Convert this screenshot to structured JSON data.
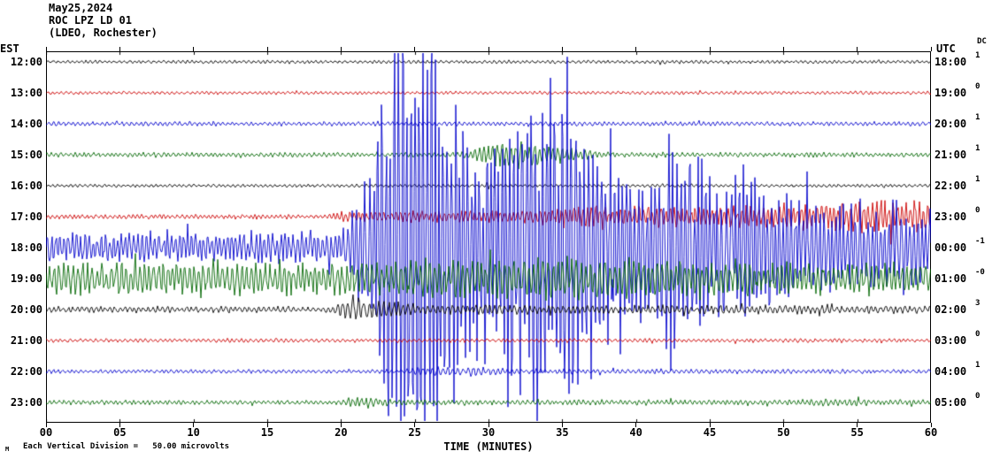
{
  "header": {
    "date": "May25,2024",
    "station": "ROC LPZ LD 01",
    "location": "(LDEO, Rochester)"
  },
  "axes": {
    "left_title": "EST",
    "right_title": "UTC",
    "dc_title": "DC",
    "x_title": "TIME (MINUTES)",
    "x_tick_labels": [
      "00",
      "05",
      "10",
      "15",
      "20",
      "25",
      "30",
      "35",
      "40",
      "45",
      "50",
      "55",
      "60"
    ]
  },
  "footer": {
    "scale_note": "Each Vertical Division =   50.00 microvolts",
    "corner_mark": "M"
  },
  "chart_data": {
    "type": "line",
    "subtype": "helicorder-seismogram",
    "title": "ROC LPZ LD 01 (LDEO, Rochester) May25,2024",
    "xlabel": "TIME (MINUTES)",
    "x_range_minutes": [
      0,
      60
    ],
    "minutes_per_row": 60,
    "vertical_division_microvolts": 50.0,
    "trace_colors_cycle": [
      "#000000",
      "#cc0000",
      "#0000cc",
      "#006600"
    ],
    "amplitude_units": "px_from_row_baseline",
    "rows": [
      {
        "est": "12:00",
        "utc": "18:00",
        "dc": "1",
        "color": "#000000",
        "seed": 101,
        "freq": 1.15,
        "env": [
          [
            0,
            1.3
          ],
          [
            60,
            1.3
          ]
        ]
      },
      {
        "est": "13:00",
        "utc": "19:00",
        "dc": "0",
        "color": "#cc0000",
        "seed": 202,
        "freq": 1.15,
        "env": [
          [
            0,
            1.3
          ],
          [
            60,
            1.3
          ]
        ]
      },
      {
        "est": "14:00",
        "utc": "20:00",
        "dc": "1",
        "color": "#0000cc",
        "seed": 303,
        "freq": 1.15,
        "env": [
          [
            0,
            1.7
          ],
          [
            60,
            1.7
          ]
        ]
      },
      {
        "est": "15:00",
        "utc": "21:00",
        "dc": "1",
        "color": "#006600",
        "seed": 404,
        "freq": 1.2,
        "env": [
          [
            0,
            1.8
          ],
          [
            27.5,
            1.8
          ],
          [
            28.5,
            3
          ],
          [
            29.5,
            7
          ],
          [
            30.5,
            10
          ],
          [
            32,
            10
          ],
          [
            33.5,
            8
          ],
          [
            35,
            6
          ],
          [
            36.5,
            4
          ],
          [
            38,
            2.5
          ],
          [
            40,
            2
          ],
          [
            60,
            1.8
          ]
        ]
      },
      {
        "est": "16:00",
        "utc": "22:00",
        "dc": "1",
        "color": "#000000",
        "seed": 505,
        "freq": 1.15,
        "env": [
          [
            0,
            1.3
          ],
          [
            29.7,
            1.3
          ],
          [
            30,
            4
          ],
          [
            30.4,
            1.3
          ],
          [
            60,
            1.3
          ]
        ]
      },
      {
        "est": "17:00",
        "utc": "23:00",
        "dc": "0",
        "color": "#cc0000",
        "seed": 606,
        "freq": 1.3,
        "env": [
          [
            0,
            1.8
          ],
          [
            19,
            1.8
          ],
          [
            20,
            4
          ],
          [
            26,
            5
          ],
          [
            30,
            5
          ],
          [
            33,
            6
          ],
          [
            36,
            9
          ],
          [
            40,
            8
          ],
          [
            44,
            8
          ],
          [
            48,
            9
          ],
          [
            52,
            10
          ],
          [
            53,
            14
          ],
          [
            55,
            12
          ],
          [
            57,
            14
          ],
          [
            58,
            12
          ],
          [
            59,
            14
          ],
          [
            60,
            13
          ]
        ]
      },
      {
        "est": "18:00",
        "utc": "00:00",
        "dc": "-1",
        "color": "#0000cc",
        "seed": 707,
        "freq": 1.35,
        "env": [
          [
            0,
            12
          ],
          [
            5,
            13
          ],
          [
            10,
            12
          ],
          [
            15,
            13
          ],
          [
            19,
            12
          ],
          [
            20,
            14
          ],
          [
            21,
            30
          ],
          [
            22,
            80
          ],
          [
            23,
            150
          ],
          [
            23.5,
            205
          ],
          [
            26.5,
            205
          ],
          [
            27.5,
            120
          ],
          [
            29,
            90
          ],
          [
            31,
            95
          ],
          [
            32,
            140
          ],
          [
            33,
            150
          ],
          [
            34,
            130
          ],
          [
            35,
            150
          ],
          [
            36,
            120
          ],
          [
            37,
            100
          ],
          [
            38,
            80
          ],
          [
            39,
            90
          ],
          [
            40,
            70
          ],
          [
            41,
            60
          ],
          [
            42,
            90
          ],
          [
            43,
            95
          ],
          [
            44,
            70
          ],
          [
            45,
            65
          ],
          [
            46,
            55
          ],
          [
            47,
            60
          ],
          [
            48,
            65
          ],
          [
            49,
            50
          ],
          [
            50,
            45
          ],
          [
            51,
            40
          ],
          [
            52,
            38
          ],
          [
            53,
            40
          ],
          [
            54,
            35
          ],
          [
            55,
            38
          ],
          [
            56,
            35
          ],
          [
            57,
            32
          ],
          [
            58,
            35
          ],
          [
            59,
            30
          ],
          [
            60,
            32
          ]
        ]
      },
      {
        "est": "19:00",
        "utc": "01:00",
        "dc": "-0",
        "color": "#006600",
        "seed": 808,
        "freq": 1.2,
        "env": [
          [
            0,
            13
          ],
          [
            5,
            14
          ],
          [
            10,
            13
          ],
          [
            15,
            14
          ],
          [
            20,
            14
          ],
          [
            25,
            15
          ],
          [
            30,
            17
          ],
          [
            35,
            18
          ],
          [
            40,
            16
          ],
          [
            45,
            15
          ],
          [
            50,
            13
          ],
          [
            55,
            12
          ],
          [
            60,
            11
          ]
        ]
      },
      {
        "est": "20:00",
        "utc": "02:00",
        "dc": "3",
        "color": "#000000",
        "seed": 909,
        "freq": 1.15,
        "env": [
          [
            0,
            2.5
          ],
          [
            19,
            2.5
          ],
          [
            20,
            6
          ],
          [
            21,
            10
          ],
          [
            22,
            9
          ],
          [
            24,
            6
          ],
          [
            26,
            4
          ],
          [
            30,
            4
          ],
          [
            35,
            3.5
          ],
          [
            45,
            3.5
          ],
          [
            60,
            3
          ]
        ]
      },
      {
        "est": "21:00",
        "utc": "03:00",
        "dc": "0",
        "color": "#cc0000",
        "seed": 1010,
        "freq": 1.15,
        "env": [
          [
            0,
            1.5
          ],
          [
            60,
            1.5
          ]
        ]
      },
      {
        "est": "22:00",
        "utc": "04:00",
        "dc": "1",
        "color": "#0000cc",
        "seed": 1111,
        "freq": 1.15,
        "env": [
          [
            0,
            1.5
          ],
          [
            24,
            1.5
          ],
          [
            25,
            3
          ],
          [
            26,
            4
          ],
          [
            28,
            4
          ],
          [
            30,
            3
          ],
          [
            32,
            2
          ],
          [
            60,
            1.6
          ]
        ]
      },
      {
        "est": "23:00",
        "utc": "05:00",
        "dc": "0",
        "color": "#006600",
        "seed": 1212,
        "freq": 1.2,
        "env": [
          [
            0,
            1.8
          ],
          [
            20,
            1.8
          ],
          [
            21,
            4
          ],
          [
            22,
            4
          ],
          [
            23.5,
            2.2
          ],
          [
            50,
            2
          ],
          [
            52,
            3
          ],
          [
            55,
            3
          ],
          [
            57,
            2.2
          ],
          [
            60,
            2
          ]
        ]
      }
    ]
  }
}
